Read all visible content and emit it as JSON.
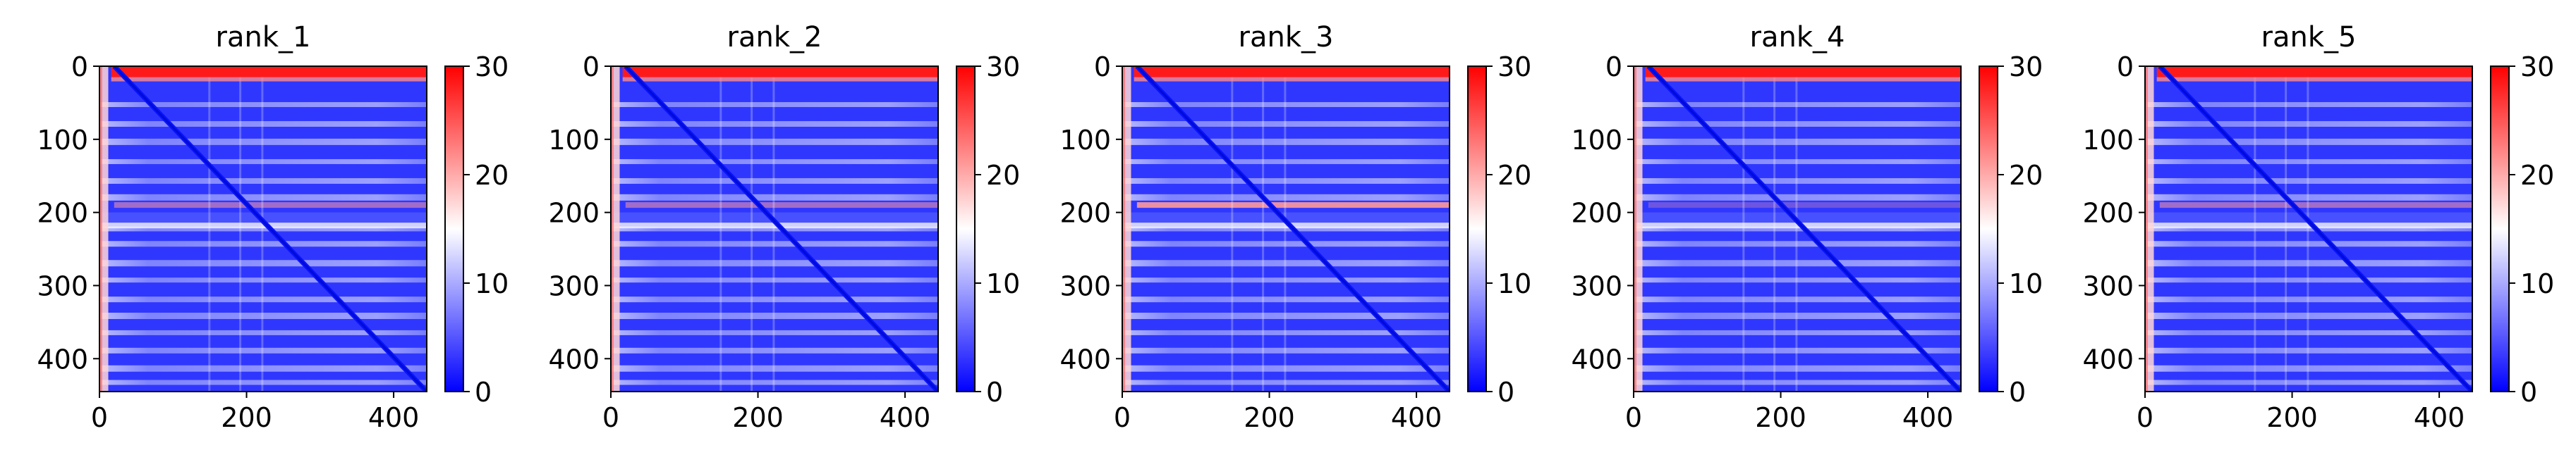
{
  "chart_data": [
    {
      "type": "heatmap",
      "title": "rank_1",
      "xlabel": "",
      "ylabel": "",
      "x_ticks": [
        0,
        200,
        400
      ],
      "y_ticks": [
        0,
        100,
        200,
        300,
        400
      ],
      "xlim": [
        0,
        445
      ],
      "ylim": [
        445,
        0
      ],
      "colorbar": {
        "ticks": [
          0,
          10,
          20,
          30
        ],
        "range": [
          0,
          30
        ],
        "colormap": "bwr"
      }
    },
    {
      "type": "heatmap",
      "title": "rank_2",
      "xlabel": "",
      "ylabel": "",
      "x_ticks": [
        0,
        200,
        400
      ],
      "y_ticks": [
        0,
        100,
        200,
        300,
        400
      ],
      "xlim": [
        0,
        445
      ],
      "ylim": [
        445,
        0
      ],
      "colorbar": {
        "ticks": [
          0,
          10,
          20,
          30
        ],
        "range": [
          0,
          30
        ],
        "colormap": "bwr"
      }
    },
    {
      "type": "heatmap",
      "title": "rank_3",
      "xlabel": "",
      "ylabel": "",
      "x_ticks": [
        0,
        200,
        400
      ],
      "y_ticks": [
        0,
        100,
        200,
        300,
        400
      ],
      "xlim": [
        0,
        445
      ],
      "ylim": [
        445,
        0
      ],
      "colorbar": {
        "ticks": [
          0,
          10,
          20,
          30
        ],
        "range": [
          0,
          30
        ],
        "colormap": "bwr"
      }
    },
    {
      "type": "heatmap",
      "title": "rank_4",
      "xlabel": "",
      "ylabel": "",
      "x_ticks": [
        0,
        200,
        400
      ],
      "y_ticks": [
        0,
        100,
        200,
        300,
        400
      ],
      "xlim": [
        0,
        445
      ],
      "ylim": [
        445,
        0
      ],
      "colorbar": {
        "ticks": [
          0,
          10,
          20,
          30
        ],
        "range": [
          0,
          30
        ],
        "colormap": "bwr"
      }
    },
    {
      "type": "heatmap",
      "title": "rank_5",
      "xlabel": "",
      "ylabel": "",
      "x_ticks": [
        0,
        200,
        400
      ],
      "y_ticks": [
        0,
        100,
        200,
        300,
        400
      ],
      "xlim": [
        0,
        445
      ],
      "ylim": [
        445,
        0
      ],
      "colorbar": {
        "ticks": [
          0,
          10,
          20,
          30
        ],
        "range": [
          0,
          30
        ],
        "colormap": "bwr"
      }
    }
  ],
  "colors": {
    "low": "#0000ff",
    "mid": "#ffffff",
    "high": "#ff0000"
  }
}
